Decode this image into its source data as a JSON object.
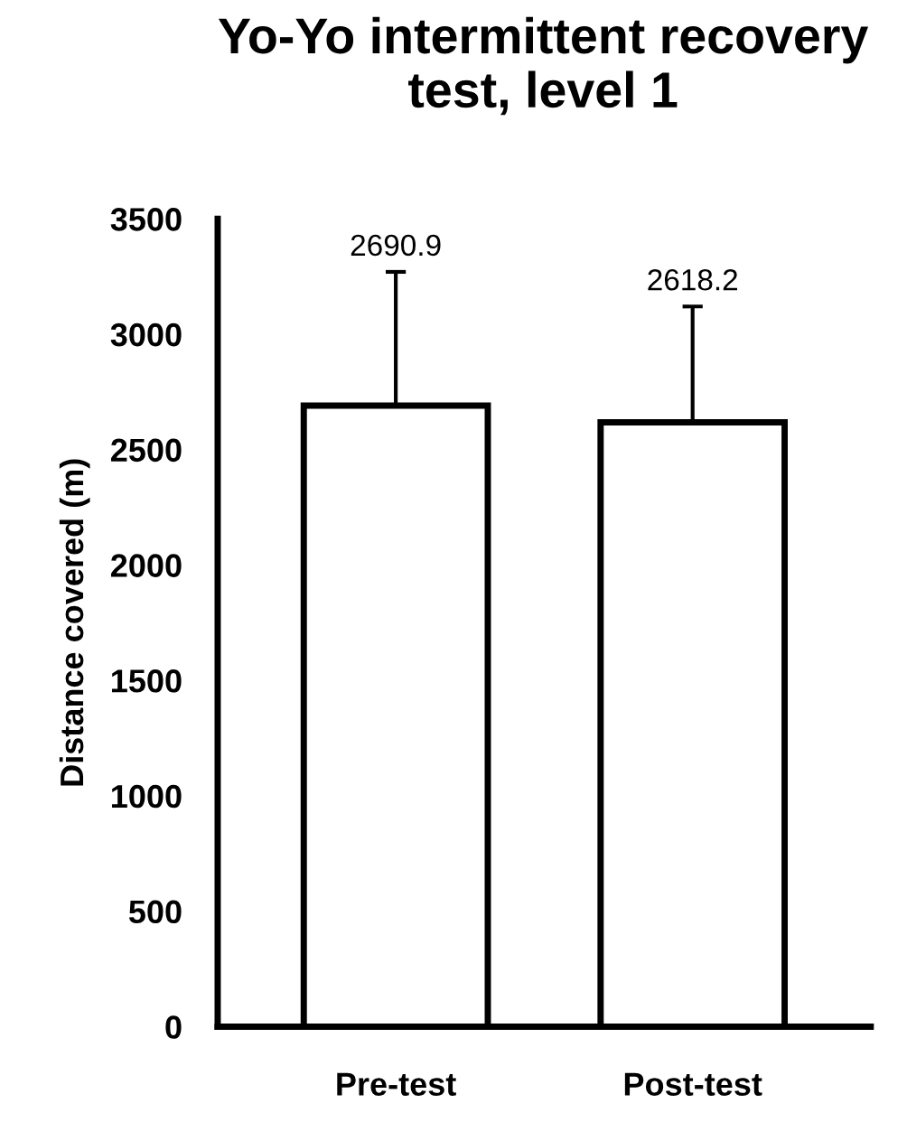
{
  "chart_data": {
    "type": "bar",
    "title": "Yo-Yo intermittent recovery test, level 1",
    "ylabel": "Distance covered (m)",
    "categories": [
      "Pre-test",
      "Post-test"
    ],
    "values": [
      2690.9,
      2618.2
    ],
    "errors": [
      [
        2690.9,
        3270
      ],
      [
        2618.2,
        3120
      ]
    ],
    "color": "#ffffff",
    "ylim": [
      0,
      3500
    ],
    "yticks": [
      0,
      500,
      1000,
      1500,
      2000,
      2500,
      3000,
      3500
    ],
    "annotations": [
      {
        "text": "2690.9",
        "x": "Pre-test",
        "y": 3270
      },
      {
        "text": "2618.2",
        "x": "Post-test",
        "y": 3120
      }
    ],
    "grid": false
  }
}
